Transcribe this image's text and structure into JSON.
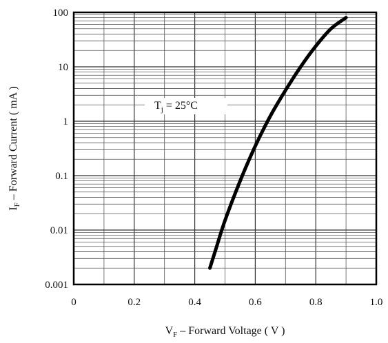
{
  "chart_data": {
    "type": "line",
    "xlabel": {
      "main": "V",
      "sub": "F",
      "rest": " – Forward Voltage ( V )"
    },
    "ylabel": {
      "main": "I",
      "sub": "F",
      "rest": " – Forward Current ( mA )"
    },
    "xlim": [
      0,
      1.0
    ],
    "ylim": [
      0.001,
      100
    ],
    "y_scale": "log",
    "grid": true,
    "x_ticks": [
      "0",
      "0.2",
      "0.4",
      "0.6",
      "0.8",
      "1.0"
    ],
    "x_tick_values": [
      0,
      0.2,
      0.4,
      0.6,
      0.8,
      1.0
    ],
    "y_ticks": [
      "0.001",
      "0.01",
      "0.1",
      "1",
      "10",
      "100"
    ],
    "y_tick_values": [
      0.001,
      0.01,
      0.1,
      1,
      10,
      100
    ],
    "annotation": {
      "main": "T",
      "sub": "j",
      "rest": " = 25°C"
    },
    "series": [
      {
        "x": [
          0.45,
          0.47,
          0.5,
          0.55,
          0.6,
          0.65,
          0.7,
          0.75,
          0.8,
          0.85,
          0.9
        ],
        "y": [
          0.002,
          0.0045,
          0.015,
          0.08,
          0.35,
          1.25,
          3.7,
          10,
          24,
          50,
          80
        ]
      }
    ]
  }
}
